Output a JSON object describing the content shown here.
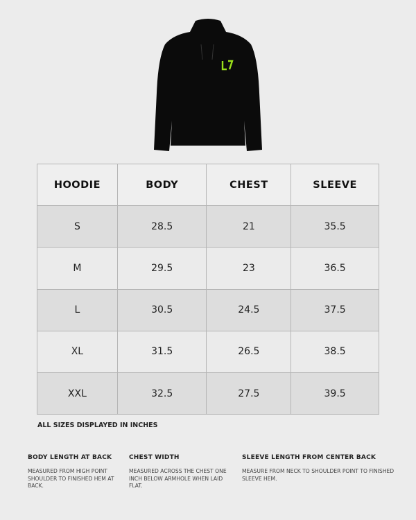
{
  "product_image": {
    "alt_logo": "L7",
    "garment_color": "#0b0b0b",
    "logo_color": "#9be01a"
  },
  "table": {
    "headers": [
      "HOODIE",
      "BODY",
      "CHEST",
      "SLEEVE"
    ],
    "rows": [
      [
        "S",
        "28.5",
        "21",
        "35.5"
      ],
      [
        "M",
        "29.5",
        "23",
        "36.5"
      ],
      [
        "L",
        "30.5",
        "24.5",
        "37.5"
      ],
      [
        "XL",
        "31.5",
        "26.5",
        "38.5"
      ],
      [
        "XXL",
        "32.5",
        "27.5",
        "39.5"
      ]
    ]
  },
  "units_note": "ALL SIZES DISPLAYED IN INCHES",
  "definitions": [
    {
      "title": "BODY LENGTH AT BACK",
      "text": "MEASURED FROM HIGH POINT SHOULDER TO FINISHED HEM AT BACK."
    },
    {
      "title": "CHEST WIDTH",
      "text": "MEASURED ACROSS THE CHEST ONE INCH BELOW ARMHOLE WHEN LAID FLAT."
    },
    {
      "title": "SLEEVE LENGTH FROM CENTER BACK",
      "text": "MEASURE FROM NECK TO SHOULDER POINT TO FINISHED SLEEVE HEM."
    }
  ]
}
